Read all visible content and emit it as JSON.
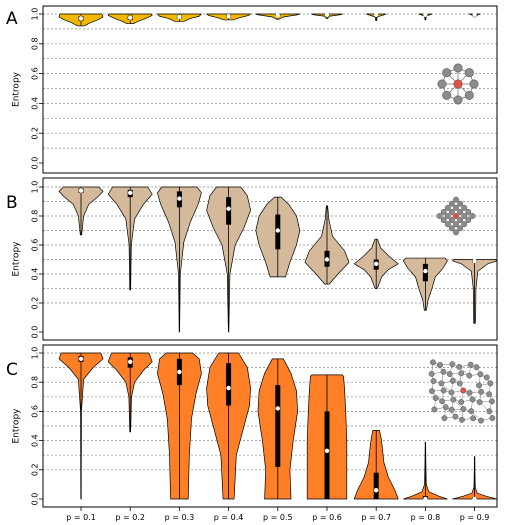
{
  "chart_data": [
    {
      "panel": "A",
      "type": "violin",
      "ylabel": "Entropy",
      "ylim": [
        0,
        1
      ],
      "yticks": [
        "0.0",
        "0.2",
        "0.4",
        "0.6",
        "0.8",
        "1.0"
      ],
      "grid": true,
      "fill": "#f5b800",
      "inset": "4-neighbour lattice (8 nodes around one centre node)",
      "categories": [
        "p = 0.1",
        "p = 0.2",
        "p = 0.3",
        "p = 0.4",
        "p = 0.5",
        "p = 0.6",
        "p = 0.7",
        "p = 0.8",
        "p = 0.9"
      ],
      "violins": [
        {
          "min": 0.92,
          "q1": 0.955,
          "median": 0.97,
          "q3": 0.985,
          "max": 1.0,
          "profile": [
            [
              0.92,
              0.15
            ],
            [
              0.94,
              0.4
            ],
            [
              0.96,
              0.75
            ],
            [
              0.98,
              1.0
            ],
            [
              1.0,
              0.95
            ]
          ]
        },
        {
          "min": 0.935,
          "q1": 0.96,
          "median": 0.975,
          "q3": 0.99,
          "max": 1.0,
          "profile": [
            [
              0.935,
              0.15
            ],
            [
              0.95,
              0.35
            ],
            [
              0.97,
              0.7
            ],
            [
              0.99,
              1.0
            ],
            [
              1.0,
              0.95
            ]
          ]
        },
        {
          "min": 0.95,
          "q1": 0.97,
          "median": 0.98,
          "q3": 0.99,
          "max": 1.0,
          "profile": [
            [
              0.95,
              0.2
            ],
            [
              0.97,
              0.5
            ],
            [
              0.985,
              0.9
            ],
            [
              1.0,
              1.0
            ]
          ]
        },
        {
          "min": 0.96,
          "q1": 0.975,
          "median": 0.985,
          "q3": 0.995,
          "max": 1.0,
          "profile": [
            [
              0.96,
              0.2
            ],
            [
              0.975,
              0.5
            ],
            [
              0.99,
              0.9
            ],
            [
              1.0,
              1.0
            ]
          ]
        },
        {
          "min": 0.965,
          "q1": 0.985,
          "median": 0.99,
          "q3": 0.995,
          "max": 1.0,
          "profile": [
            [
              0.965,
              0.05
            ],
            [
              0.98,
              0.25
            ],
            [
              0.995,
              0.9
            ],
            [
              1.0,
              1.0
            ]
          ]
        },
        {
          "min": 0.97,
          "q1": 0.99,
          "median": 0.995,
          "q3": 1.0,
          "max": 1.0,
          "profile": [
            [
              0.97,
              0.03
            ],
            [
              0.985,
              0.1
            ],
            [
              0.995,
              0.6
            ],
            [
              1.0,
              0.7
            ]
          ]
        },
        {
          "min": 0.955,
          "q1": 0.99,
          "median": 0.995,
          "q3": 1.0,
          "max": 1.0,
          "profile": [
            [
              0.955,
              0.02
            ],
            [
              0.98,
              0.05
            ],
            [
              0.995,
              0.35
            ],
            [
              1.0,
              0.45
            ]
          ]
        },
        {
          "min": 0.96,
          "q1": 0.99,
          "median": 0.995,
          "q3": 1.0,
          "max": 1.0,
          "profile": [
            [
              0.96,
              0.02
            ],
            [
              0.985,
              0.04
            ],
            [
              0.995,
              0.2
            ],
            [
              1.0,
              0.3
            ]
          ]
        },
        {
          "min": 0.98,
          "q1": 0.99,
          "median": 0.995,
          "q3": 1.0,
          "max": 1.0,
          "profile": [
            [
              0.98,
              0.02
            ],
            [
              0.995,
              0.15
            ],
            [
              1.0,
              0.25
            ]
          ]
        }
      ]
    },
    {
      "panel": "B",
      "type": "violin",
      "ylabel": "Entropy",
      "ylim": [
        0,
        1
      ],
      "yticks": [
        "0.0",
        "0.2",
        "0.4",
        "0.6",
        "0.8",
        "1.0"
      ],
      "grid": true,
      "fill": "#d4b99a",
      "inset": "diamond lattice with centre node",
      "categories": [
        "p = 0.1",
        "p = 0.2",
        "p = 0.3",
        "p = 0.4",
        "p = 0.5",
        "p = 0.6",
        "p = 0.7",
        "p = 0.8",
        "p = 0.9"
      ],
      "violins": [
        {
          "min": 0.67,
          "q1": 0.96,
          "median": 0.975,
          "q3": 0.99,
          "max": 1.0,
          "profile": [
            [
              0.67,
              0.03
            ],
            [
              0.8,
              0.12
            ],
            [
              0.88,
              0.35
            ],
            [
              0.93,
              0.75
            ],
            [
              0.97,
              1.0
            ],
            [
              1.0,
              0.8
            ]
          ]
        },
        {
          "min": 0.29,
          "q1": 0.93,
          "median": 0.96,
          "q3": 0.98,
          "max": 1.0,
          "profile": [
            [
              0.29,
              0.02
            ],
            [
              0.6,
              0.05
            ],
            [
              0.78,
              0.2
            ],
            [
              0.88,
              0.6
            ],
            [
              0.95,
              1.0
            ],
            [
              1.0,
              0.8
            ]
          ]
        },
        {
          "min": 0.0,
          "q1": 0.86,
          "median": 0.92,
          "q3": 0.97,
          "max": 1.0,
          "profile": [
            [
              0.0,
              0.01
            ],
            [
              0.4,
              0.04
            ],
            [
              0.62,
              0.2
            ],
            [
              0.76,
              0.5
            ],
            [
              0.88,
              0.85
            ],
            [
              0.96,
              1.0
            ],
            [
              1.0,
              0.8
            ]
          ]
        },
        {
          "min": 0.0,
          "q1": 0.74,
          "median": 0.85,
          "q3": 0.93,
          "max": 1.0,
          "profile": [
            [
              0.0,
              0.01
            ],
            [
              0.4,
              0.06
            ],
            [
              0.6,
              0.3
            ],
            [
              0.72,
              0.7
            ],
            [
              0.84,
              1.0
            ],
            [
              0.94,
              0.85
            ],
            [
              1.0,
              0.55
            ]
          ]
        },
        {
          "min": 0.38,
          "q1": 0.57,
          "median": 0.7,
          "q3": 0.81,
          "max": 0.93,
          "profile": [
            [
              0.38,
              0.35
            ],
            [
              0.48,
              0.55
            ],
            [
              0.6,
              0.85
            ],
            [
              0.7,
              1.0
            ],
            [
              0.8,
              0.85
            ],
            [
              0.88,
              0.5
            ],
            [
              0.93,
              0.15
            ]
          ]
        },
        {
          "min": 0.33,
          "q1": 0.45,
          "median": 0.5,
          "q3": 0.56,
          "max": 0.87,
          "profile": [
            [
              0.33,
              0.1
            ],
            [
              0.4,
              0.5
            ],
            [
              0.48,
              1.0
            ],
            [
              0.56,
              0.8
            ],
            [
              0.66,
              0.25
            ],
            [
              0.78,
              0.08
            ],
            [
              0.87,
              0.03
            ]
          ]
        },
        {
          "min": 0.3,
          "q1": 0.43,
          "median": 0.47,
          "q3": 0.5,
          "max": 0.64,
          "profile": [
            [
              0.3,
              0.05
            ],
            [
              0.38,
              0.25
            ],
            [
              0.43,
              0.55
            ],
            [
              0.47,
              1.0
            ],
            [
              0.52,
              0.6
            ],
            [
              0.58,
              0.2
            ],
            [
              0.64,
              0.06
            ]
          ]
        },
        {
          "min": 0.15,
          "q1": 0.35,
          "median": 0.42,
          "q3": 0.47,
          "max": 0.51,
          "profile": [
            [
              0.15,
              0.05
            ],
            [
              0.22,
              0.12
            ],
            [
              0.3,
              0.3
            ],
            [
              0.38,
              0.45
            ],
            [
              0.44,
              0.8
            ],
            [
              0.49,
              1.0
            ],
            [
              0.51,
              0.9
            ]
          ]
        },
        {
          "min": 0.06,
          "q1": 0.48,
          "median": 0.49,
          "q3": 0.5,
          "max": 0.5,
          "profile": [
            [
              0.06,
              0.04
            ],
            [
              0.15,
              0.05
            ],
            [
              0.3,
              0.06
            ],
            [
              0.42,
              0.15
            ],
            [
              0.47,
              0.6
            ],
            [
              0.49,
              1.0
            ],
            [
              0.5,
              0.95
            ]
          ]
        }
      ]
    },
    {
      "panel": "C",
      "type": "violin",
      "ylabel": "Entropy",
      "ylim": [
        0,
        1
      ],
      "yticks": [
        "0.0",
        "0.2",
        "0.4",
        "0.6",
        "0.8",
        "1.0"
      ],
      "grid": true,
      "fill": "#ff7f27",
      "inset": "random network with centre node",
      "categories": [
        "p = 0.1",
        "p = 0.2",
        "p = 0.3",
        "p = 0.4",
        "p = 0.5",
        "p = 0.6",
        "p = 0.7",
        "p = 0.8",
        "p = 0.9"
      ],
      "violins": [
        {
          "min": 0.0,
          "q1": 0.94,
          "median": 0.96,
          "q3": 0.98,
          "max": 1.0,
          "profile": [
            [
              0.0,
              0.01
            ],
            [
              0.6,
              0.02
            ],
            [
              0.82,
              0.12
            ],
            [
              0.9,
              0.55
            ],
            [
              0.96,
              1.0
            ],
            [
              1.0,
              0.9
            ]
          ]
        },
        {
          "min": 0.46,
          "q1": 0.9,
          "median": 0.94,
          "q3": 0.97,
          "max": 1.0,
          "profile": [
            [
              0.46,
              0.02
            ],
            [
              0.7,
              0.06
            ],
            [
              0.8,
              0.2
            ],
            [
              0.88,
              0.6
            ],
            [
              0.94,
              1.0
            ],
            [
              1.0,
              0.85
            ]
          ]
        },
        {
          "min": 0.0,
          "q1": 0.78,
          "median": 0.87,
          "q3": 0.96,
          "max": 1.0,
          "profile": [
            [
              0.0,
              0.4
            ],
            [
              0.3,
              0.45
            ],
            [
              0.55,
              0.55
            ],
            [
              0.72,
              0.75
            ],
            [
              0.86,
              1.0
            ],
            [
              0.96,
              0.9
            ],
            [
              1.0,
              0.6
            ]
          ]
        },
        {
          "min": 0.0,
          "q1": 0.64,
          "median": 0.76,
          "q3": 0.93,
          "max": 1.0,
          "profile": [
            [
              0.0,
              0.25
            ],
            [
              0.3,
              0.35
            ],
            [
              0.5,
              0.7
            ],
            [
              0.64,
              0.95
            ],
            [
              0.76,
              1.0
            ],
            [
              0.9,
              0.85
            ],
            [
              1.0,
              0.45
            ]
          ]
        },
        {
          "min": 0.0,
          "q1": 0.22,
          "median": 0.62,
          "q3": 0.78,
          "max": 0.96,
          "profile": [
            [
              0.0,
              0.6
            ],
            [
              0.2,
              0.55
            ],
            [
              0.4,
              0.7
            ],
            [
              0.6,
              0.9
            ],
            [
              0.74,
              0.85
            ],
            [
              0.86,
              0.6
            ],
            [
              0.96,
              0.25
            ]
          ]
        },
        {
          "min": 0.0,
          "q1": 0.0,
          "median": 0.33,
          "q3": 0.6,
          "max": 0.85,
          "profile": [
            [
              0.0,
              0.9
            ],
            [
              0.2,
              0.9
            ],
            [
              0.4,
              0.9
            ],
            [
              0.6,
              0.85
            ],
            [
              0.75,
              0.8
            ],
            [
              0.84,
              0.75
            ],
            [
              0.85,
              0.7
            ]
          ]
        },
        {
          "min": 0.0,
          "q1": 0.0,
          "median": 0.06,
          "q3": 0.18,
          "max": 0.47,
          "profile": [
            [
              0.0,
              1.0
            ],
            [
              0.06,
              0.85
            ],
            [
              0.15,
              0.55
            ],
            [
              0.25,
              0.35
            ],
            [
              0.35,
              0.28
            ],
            [
              0.42,
              0.22
            ],
            [
              0.47,
              0.15
            ]
          ]
        },
        {
          "min": 0.0,
          "q1": 0.0,
          "median": 0.0,
          "q3": 0.02,
          "max": 0.39,
          "profile": [
            [
              0.0,
              1.0
            ],
            [
              0.02,
              0.6
            ],
            [
              0.05,
              0.15
            ],
            [
              0.1,
              0.04
            ],
            [
              0.25,
              0.02
            ],
            [
              0.39,
              0.01
            ]
          ]
        },
        {
          "min": 0.0,
          "q1": 0.0,
          "median": 0.0,
          "q3": 0.01,
          "max": 0.29,
          "profile": [
            [
              0.0,
              1.0
            ],
            [
              0.02,
              0.5
            ],
            [
              0.04,
              0.12
            ],
            [
              0.08,
              0.03
            ],
            [
              0.2,
              0.015
            ],
            [
              0.29,
              0.01
            ]
          ]
        }
      ]
    }
  ]
}
